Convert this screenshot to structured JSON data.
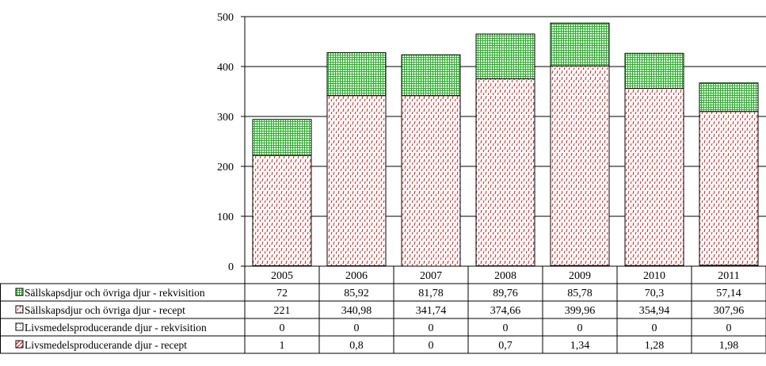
{
  "chart_data": {
    "type": "bar",
    "stacked": true,
    "categories": [
      "2005",
      "2006",
      "2007",
      "2008",
      "2009",
      "2010",
      "2011"
    ],
    "ylim": [
      0,
      500
    ],
    "yticks": [
      0,
      100,
      200,
      300,
      400,
      500
    ],
    "grid": true,
    "legend": "data-table",
    "series": [
      {
        "name": "Sällskapsdjur och övriga djur - rekvisition",
        "values": [
          72,
          85.92,
          81.78,
          89.76,
          85.78,
          70.3,
          57.14
        ],
        "labels": [
          "72",
          "85,92",
          "81,78",
          "89,76",
          "85,78",
          "70,3",
          "57,14"
        ],
        "color": "#22c022",
        "pattern": "grid"
      },
      {
        "name": "Sällskapsdjur och övriga djur - recept",
        "values": [
          221,
          340.98,
          341.74,
          374.66,
          399.96,
          354.94,
          307.96
        ],
        "labels": [
          "221",
          "340,98",
          "341,74",
          "374,66",
          "399,96",
          "354,94",
          "307,96"
        ],
        "color": "#cc2020",
        "pattern": "dashes"
      },
      {
        "name": "Livsmedelsproducerande djur - rekvisition",
        "values": [
          0,
          0,
          0,
          0,
          0,
          0,
          0
        ],
        "labels": [
          "0",
          "0",
          "0",
          "0",
          "0",
          "0",
          "0"
        ],
        "color": "#c04060",
        "pattern": "dots"
      },
      {
        "name": "Livsmedelsproducerande djur - recept",
        "values": [
          1,
          0.8,
          0,
          0.7,
          1.34,
          1.28,
          1.98
        ],
        "labels": [
          "1",
          "0,8",
          "0",
          "0,7",
          "1,34",
          "1,28",
          "1,98"
        ],
        "color": "#e02020",
        "pattern": "diagonal"
      }
    ]
  }
}
